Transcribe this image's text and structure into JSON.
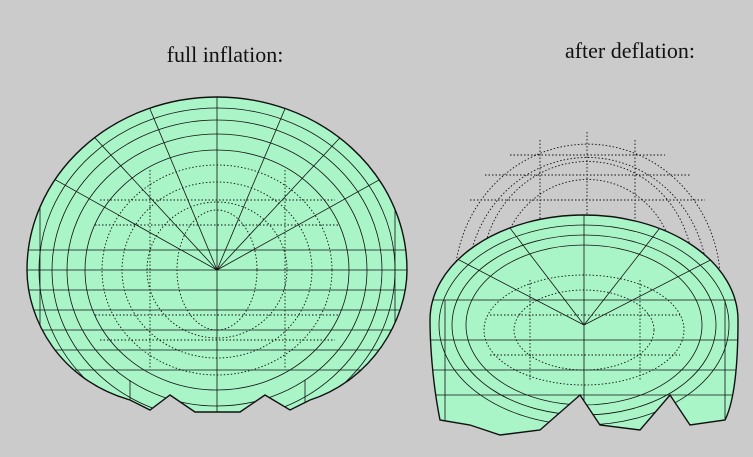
{
  "captions": [
    "full inflation:",
    "after deflation:"
  ]
}
